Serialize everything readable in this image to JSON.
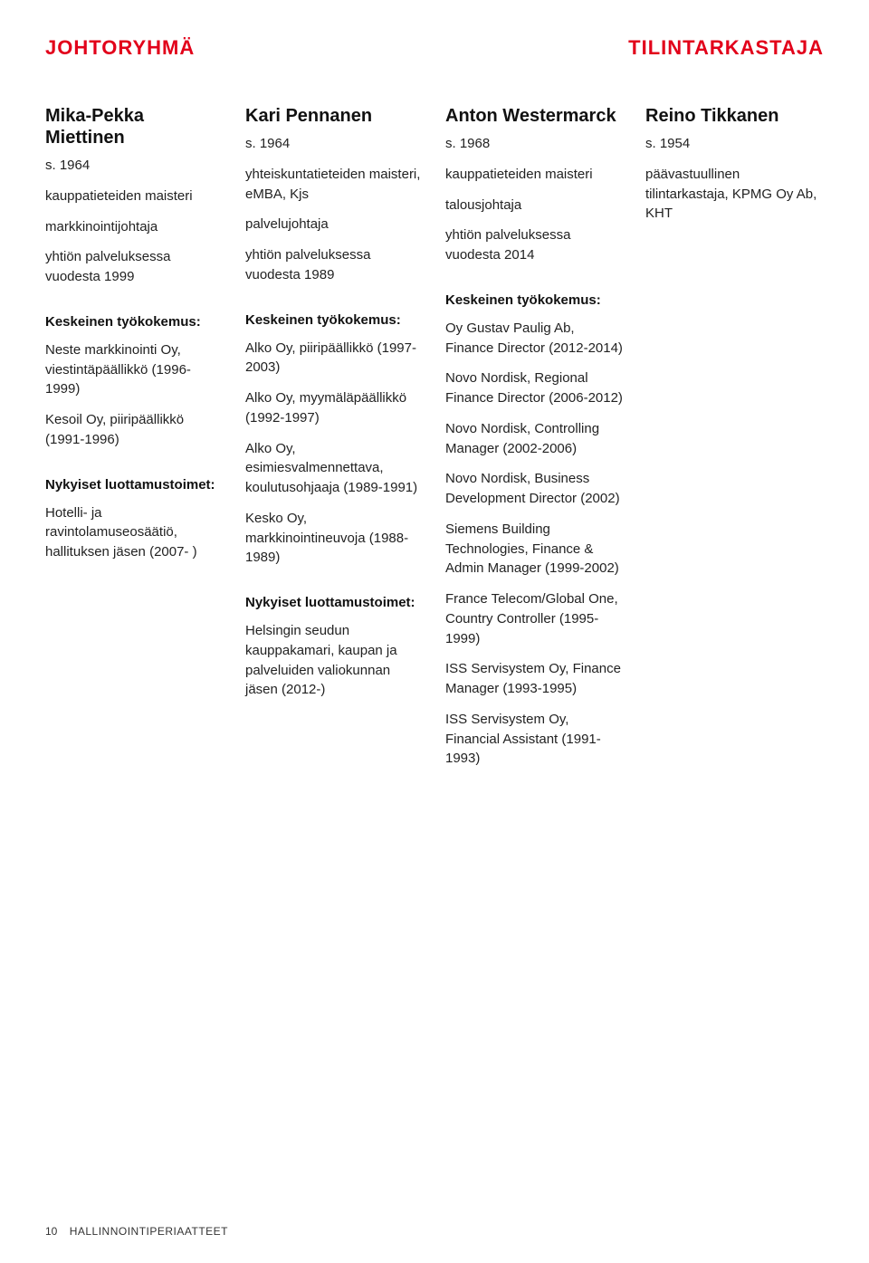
{
  "header": {
    "left": "JOHTORYHMÄ",
    "right": "TILINTARKASTAJA"
  },
  "colors": {
    "accent": "#e2001a",
    "text": "#222222",
    "name": "#111111",
    "background": "#ffffff"
  },
  "fonts": {
    "heading_size_pt": 22,
    "name_size_pt": 20,
    "body_size_pt": 15,
    "footer_size_pt": 12
  },
  "people": [
    {
      "name": "Mika-Pekka Miettinen",
      "born": "s. 1964",
      "lines": [
        "kauppatieteiden maisteri",
        "markkinointijohtaja",
        "yhtiön palveluksessa vuodesta 1999"
      ],
      "exp_label": "Keskeinen työkokemus:",
      "experience": [
        "Neste markkinointi Oy, viestintäpäällikkö (1996-1999)",
        "Kesoil Oy, piiripäällikkö (1991-1996)"
      ],
      "trust_label": "Nykyiset luottamustoimet:",
      "trusts": [
        "Hotelli- ja ravintolamuseosäätiö, hallituksen jäsen (2007- )"
      ]
    },
    {
      "name": "Kari Pennanen",
      "born": "s. 1964",
      "lines": [
        "yhteiskuntatieteiden maisteri, eMBA, Kjs",
        "palvelujohtaja",
        "yhtiön palveluksessa vuodesta 1989"
      ],
      "exp_label": "Keskeinen työkokemus:",
      "experience": [
        "Alko Oy, piiripäällikkö (1997-2003)",
        "Alko Oy, myymäläpäällikkö (1992-1997)",
        "Alko Oy, esimiesvalmennettava, koulutusohjaaja (1989-1991)",
        "Kesko Oy, markkinointineuvoja (1988-1989)"
      ],
      "trust_label": "Nykyiset luottamustoimet:",
      "trusts": [
        "Helsingin seudun kauppakamari, kaupan ja palveluiden valiokunnan jäsen (2012-)"
      ]
    },
    {
      "name": "Anton Westermarck",
      "born": "s. 1968",
      "lines": [
        "kauppatieteiden maisteri",
        "talousjohtaja",
        "yhtiön palveluksessa vuodesta 2014"
      ],
      "exp_label": "Keskeinen työkokemus:",
      "experience": [
        "Oy Gustav Paulig Ab, Finance Director (2012-2014)",
        "Novo Nordisk, Regional Finance Director (2006-2012)",
        "Novo Nordisk, Controlling Manager (2002-2006)",
        "Novo Nordisk, Business Development Director (2002)",
        "Siemens Building Technologies, Finance & Admin Manager (1999-2002)",
        "France Telecom/Global One, Country Controller (1995-1999)",
        "ISS Servisystem Oy, Finance Manager (1993-1995)",
        "ISS Servisystem Oy, Financial Assistant (1991-1993)"
      ],
      "trust_label": "",
      "trusts": []
    },
    {
      "name": "Reino Tikkanen",
      "born": "s. 1954",
      "lines": [
        "päävastuullinen tilintarkastaja, KPMG Oy Ab, KHT"
      ],
      "exp_label": "",
      "experience": [],
      "trust_label": "",
      "trusts": []
    }
  ],
  "footer": {
    "page": "10",
    "label": "HALLINNOINTIPERIAATTEET"
  }
}
